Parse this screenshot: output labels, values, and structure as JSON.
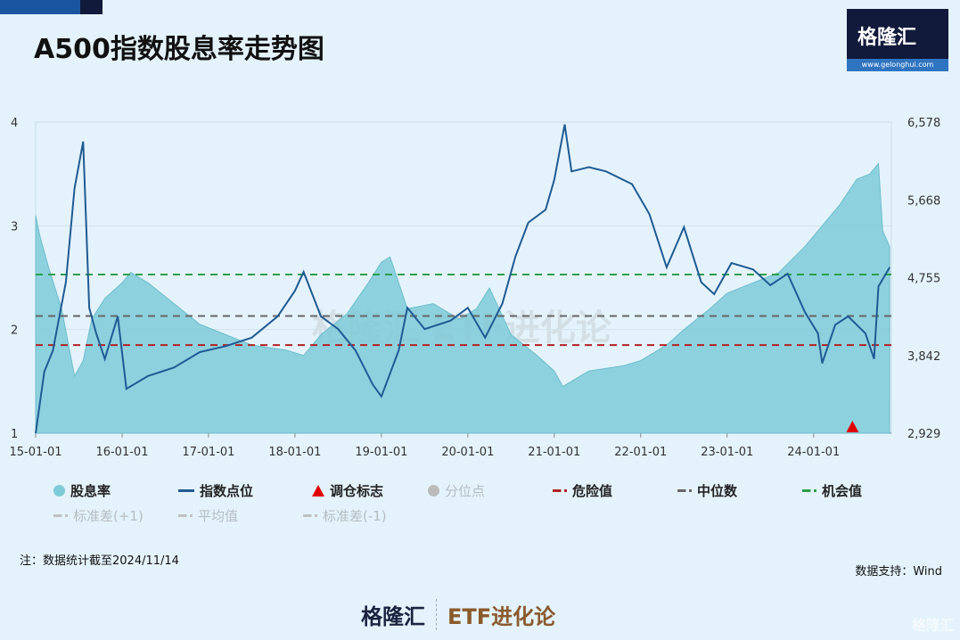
{
  "title": "A500指数股息率走势图",
  "logo": {
    "name": "格隆汇",
    "url": "www.gelonghui.com"
  },
  "watermark": "格隆汇 ETF进化论",
  "chart_data": {
    "type": "area+line",
    "title": "A500指数股息率走势图",
    "x_ticks": [
      "15-01-01",
      "16-01-01",
      "17-01-01",
      "18-01-01",
      "19-01-01",
      "20-01-01",
      "21-01-01",
      "22-01-01",
      "23-01-01",
      "24-01-01"
    ],
    "x_range": [
      2015.0,
      2024.9
    ],
    "left_axis": {
      "ticks": [
        "1",
        "2",
        "3",
        "4"
      ],
      "range": [
        1,
        4
      ]
    },
    "right_axis": {
      "ticks": [
        "2,929",
        "3,842",
        "4,755",
        "5,668",
        "6,578"
      ],
      "range": [
        2929,
        6578
      ]
    },
    "series": [
      {
        "name": "股息率",
        "axis": "left",
        "color": "#7fcad8",
        "points": [
          [
            2015.0,
            3.1
          ],
          [
            2015.05,
            2.9
          ],
          [
            2015.15,
            2.6
          ],
          [
            2015.3,
            2.2
          ],
          [
            2015.45,
            1.55
          ],
          [
            2015.55,
            1.7
          ],
          [
            2015.65,
            2.1
          ],
          [
            2015.8,
            2.3
          ],
          [
            2016.0,
            2.45
          ],
          [
            2016.1,
            2.55
          ],
          [
            2016.3,
            2.45
          ],
          [
            2016.6,
            2.25
          ],
          [
            2016.9,
            2.05
          ],
          [
            2017.2,
            1.95
          ],
          [
            2017.5,
            1.85
          ],
          [
            2017.9,
            1.8
          ],
          [
            2018.1,
            1.75
          ],
          [
            2018.3,
            1.95
          ],
          [
            2018.6,
            2.15
          ],
          [
            2018.85,
            2.45
          ],
          [
            2019.0,
            2.65
          ],
          [
            2019.1,
            2.7
          ],
          [
            2019.3,
            2.2
          ],
          [
            2019.6,
            2.25
          ],
          [
            2019.9,
            2.1
          ],
          [
            2020.1,
            2.2
          ],
          [
            2020.25,
            2.4
          ],
          [
            2020.5,
            1.95
          ],
          [
            2020.8,
            1.75
          ],
          [
            2021.0,
            1.6
          ],
          [
            2021.1,
            1.45
          ],
          [
            2021.4,
            1.6
          ],
          [
            2021.8,
            1.65
          ],
          [
            2022.0,
            1.7
          ],
          [
            2022.3,
            1.85
          ],
          [
            2022.5,
            2.0
          ],
          [
            2022.8,
            2.2
          ],
          [
            2023.0,
            2.35
          ],
          [
            2023.3,
            2.45
          ],
          [
            2023.6,
            2.55
          ],
          [
            2023.9,
            2.8
          ],
          [
            2024.1,
            3.0
          ],
          [
            2024.3,
            3.2
          ],
          [
            2024.5,
            3.45
          ],
          [
            2024.65,
            3.5
          ],
          [
            2024.75,
            3.6
          ],
          [
            2024.8,
            2.95
          ],
          [
            2024.88,
            2.8
          ]
        ]
      },
      {
        "name": "指数点位",
        "axis": "right",
        "color": "#1f5a94",
        "points": [
          [
            2015.0,
            2929
          ],
          [
            2015.1,
            3650
          ],
          [
            2015.2,
            3900
          ],
          [
            2015.35,
            4700
          ],
          [
            2015.45,
            5800
          ],
          [
            2015.55,
            6350
          ],
          [
            2015.62,
            4400
          ],
          [
            2015.7,
            4100
          ],
          [
            2015.8,
            3800
          ],
          [
            2015.95,
            4300
          ],
          [
            2016.05,
            3450
          ],
          [
            2016.3,
            3600
          ],
          [
            2016.6,
            3700
          ],
          [
            2016.9,
            3880
          ],
          [
            2017.2,
            3950
          ],
          [
            2017.5,
            4050
          ],
          [
            2017.8,
            4300
          ],
          [
            2018.0,
            4600
          ],
          [
            2018.1,
            4820
          ],
          [
            2018.3,
            4300
          ],
          [
            2018.5,
            4150
          ],
          [
            2018.7,
            3900
          ],
          [
            2018.9,
            3500
          ],
          [
            2019.0,
            3360
          ],
          [
            2019.2,
            3900
          ],
          [
            2019.3,
            4400
          ],
          [
            2019.5,
            4150
          ],
          [
            2019.8,
            4250
          ],
          [
            2020.0,
            4400
          ],
          [
            2020.2,
            4050
          ],
          [
            2020.4,
            4450
          ],
          [
            2020.55,
            5000
          ],
          [
            2020.7,
            5400
          ],
          [
            2020.9,
            5550
          ],
          [
            2021.0,
            5900
          ],
          [
            2021.12,
            6550
          ],
          [
            2021.2,
            6000
          ],
          [
            2021.4,
            6050
          ],
          [
            2021.6,
            6000
          ],
          [
            2021.9,
            5850
          ],
          [
            2022.1,
            5500
          ],
          [
            2022.3,
            4875
          ],
          [
            2022.5,
            5345
          ],
          [
            2022.7,
            4700
          ],
          [
            2022.85,
            4560
          ],
          [
            2023.05,
            4925
          ],
          [
            2023.3,
            4850
          ],
          [
            2023.5,
            4665
          ],
          [
            2023.7,
            4800
          ],
          [
            2023.9,
            4350
          ],
          [
            2024.05,
            4100
          ],
          [
            2024.1,
            3750
          ],
          [
            2024.25,
            4200
          ],
          [
            2024.4,
            4300
          ],
          [
            2024.6,
            4100
          ],
          [
            2024.7,
            3800
          ],
          [
            2024.75,
            4650
          ],
          [
            2024.88,
            4875
          ]
        ]
      }
    ],
    "reference_lines": [
      {
        "name": "危险值",
        "value": 1.85,
        "color": "#b22222"
      },
      {
        "name": "中位数",
        "value": 2.13,
        "color": "#666666"
      },
      {
        "name": "机会值",
        "value": 2.53,
        "color": "#2e9e4a"
      }
    ],
    "markers": [
      {
        "name": "调仓标志",
        "x": 2024.45,
        "color": "#e00000"
      }
    ],
    "legend": {
      "placement": "bottom",
      "items": [
        {
          "label": "股息率",
          "kind": "circle",
          "color": "#7fcad8"
        },
        {
          "label": "指数点位",
          "kind": "line",
          "color": "#1f5a94"
        },
        {
          "label": "调仓标志",
          "kind": "triangle",
          "color": "#e00000"
        },
        {
          "label": "分位点",
          "kind": "circle",
          "color": "#bbbbbb",
          "dim": true
        },
        {
          "label": "危险值",
          "kind": "dash",
          "color": "#b22222"
        },
        {
          "label": "中位数",
          "kind": "dash",
          "color": "#666666"
        },
        {
          "label": "机会值",
          "kind": "dash",
          "color": "#2e9e4a"
        },
        {
          "label": "标准差(+1)",
          "kind": "dash",
          "color": "#c0c0c0",
          "dim": true
        },
        {
          "label": "平均值",
          "kind": "dash",
          "color": "#c0c0c0",
          "dim": true
        },
        {
          "label": "标准差(-1)",
          "kind": "dash",
          "color": "#c0c0c0",
          "dim": true
        }
      ]
    }
  },
  "note": "注：数据统计截至2024/11/14",
  "source": "数据支持：Wind",
  "footer": {
    "brand": "格隆汇",
    "column": "ETF进化论"
  }
}
